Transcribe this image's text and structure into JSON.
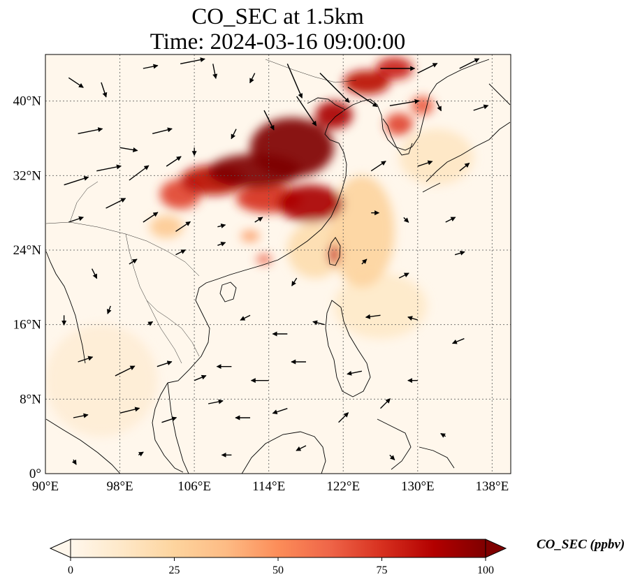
{
  "title": "CO_SEC at 1.5km",
  "subtitle": "Time: 2024-03-16 09:00:00",
  "map": {
    "lon_range": [
      90,
      140
    ],
    "lat_range": [
      0,
      45
    ],
    "lon_ticks": [
      {
        "value": 90,
        "label": "90°E"
      },
      {
        "value": 98,
        "label": "98°E"
      },
      {
        "value": 106,
        "label": "106°E"
      },
      {
        "value": 114,
        "label": "114°E"
      },
      {
        "value": 122,
        "label": "122°E"
      },
      {
        "value": 130,
        "label": "130°E"
      },
      {
        "value": 138,
        "label": "138°E"
      }
    ],
    "lat_ticks": [
      {
        "value": 0,
        "label": "0°"
      },
      {
        "value": 8,
        "label": "8°N"
      },
      {
        "value": 16,
        "label": "16°N"
      },
      {
        "value": 24,
        "label": "24°N"
      },
      {
        "value": 32,
        "label": "32°N"
      },
      {
        "value": 40,
        "label": "40°N"
      }
    ],
    "gridlines": true,
    "field_color_low": "#fff7ec",
    "field_color_high": "#7f0000"
  },
  "colorbar": {
    "label": "CO_SEC (ppbv)",
    "min": 0,
    "max": 100,
    "ticks": [
      {
        "value": 0,
        "label": "0"
      },
      {
        "value": 25,
        "label": "25"
      },
      {
        "value": 50,
        "label": "50"
      },
      {
        "value": 75,
        "label": "75"
      },
      {
        "value": 100,
        "label": "100"
      }
    ],
    "extend": "both",
    "colormap": "OrRd",
    "stops": [
      "#fff7ec",
      "#fee8c8",
      "#fdd49e",
      "#fdbb84",
      "#fc8d59",
      "#ef6548",
      "#d7301f",
      "#b30000",
      "#7f0000"
    ]
  },
  "plumes": [
    {
      "lon": 116.5,
      "lat": 35.0,
      "rx": 4.5,
      "ry": 3.2,
      "value": 100
    },
    {
      "lon": 112.5,
      "lat": 32.5,
      "rx": 5.0,
      "ry": 1.8,
      "value": 100
    },
    {
      "lon": 108.0,
      "lat": 31.5,
      "rx": 3.5,
      "ry": 1.6,
      "value": 85
    },
    {
      "lon": 104.5,
      "lat": 30.0,
      "rx": 2.2,
      "ry": 1.6,
      "value": 70
    },
    {
      "lon": 118.5,
      "lat": 29.0,
      "rx": 3.5,
      "ry": 2.0,
      "value": 90
    },
    {
      "lon": 114.0,
      "lat": 29.5,
      "rx": 3.5,
      "ry": 1.5,
      "value": 75
    },
    {
      "lon": 121.0,
      "lat": 38.5,
      "rx": 2.0,
      "ry": 1.5,
      "value": 90
    },
    {
      "lon": 124.5,
      "lat": 42.0,
      "rx": 2.5,
      "ry": 1.3,
      "value": 85
    },
    {
      "lon": 127.5,
      "lat": 43.5,
      "rx": 2.0,
      "ry": 1.2,
      "value": 80
    },
    {
      "lon": 128.0,
      "lat": 37.5,
      "rx": 1.5,
      "ry": 1.2,
      "value": 70
    },
    {
      "lon": 130.5,
      "lat": 39.5,
      "rx": 1.2,
      "ry": 1.0,
      "value": 65
    },
    {
      "lon": 121.0,
      "lat": 23.5,
      "rx": 0.6,
      "ry": 1.1,
      "value": 80
    },
    {
      "lon": 113.5,
      "lat": 23.0,
      "rx": 0.8,
      "ry": 0.5,
      "value": 65
    },
    {
      "lon": 112.0,
      "lat": 25.5,
      "rx": 1.0,
      "ry": 0.6,
      "value": 45
    },
    {
      "lon": 103.0,
      "lat": 26.5,
      "rx": 1.8,
      "ry": 1.2,
      "value": 30
    },
    {
      "lon": 124.0,
      "lat": 26.0,
      "rx": 3.5,
      "ry": 6.0,
      "value": 25
    },
    {
      "lon": 119.0,
      "lat": 24.0,
      "rx": 3.0,
      "ry": 3.0,
      "value": 20
    },
    {
      "lon": 126.0,
      "lat": 18.0,
      "rx": 5.0,
      "ry": 3.5,
      "value": 12
    },
    {
      "lon": 96.0,
      "lat": 10.0,
      "rx": 6.0,
      "ry": 6.0,
      "value": 8
    },
    {
      "lon": 132.0,
      "lat": 34.0,
      "rx": 4.0,
      "ry": 3.0,
      "value": 14
    }
  ],
  "wind_vectors": [
    {
      "lon": 92.5,
      "lat": 42.5,
      "u": 1.5,
      "v": -1.0
    },
    {
      "lon": 96.0,
      "lat": 42.0,
      "u": 0.5,
      "v": -1.5
    },
    {
      "lon": 100.5,
      "lat": 43.5,
      "u": 1.5,
      "v": 0.3
    },
    {
      "lon": 104.5,
      "lat": 44.0,
      "u": 2.5,
      "v": 0.5
    },
    {
      "lon": 108.0,
      "lat": 44.0,
      "u": 0.3,
      "v": -1.5
    },
    {
      "lon": 112.5,
      "lat": 43.0,
      "u": -0.5,
      "v": -1.0
    },
    {
      "lon": 116.0,
      "lat": 44.0,
      "u": 1.5,
      "v": -3.5
    },
    {
      "lon": 119.5,
      "lat": 43.0,
      "u": 3.0,
      "v": -3.0
    },
    {
      "lon": 122.5,
      "lat": 41.5,
      "u": 3.0,
      "v": -2.0
    },
    {
      "lon": 126.0,
      "lat": 43.5,
      "u": 3.5,
      "v": 0.0
    },
    {
      "lon": 130.0,
      "lat": 43.0,
      "u": 2.0,
      "v": 1.0
    },
    {
      "lon": 134.5,
      "lat": 43.5,
      "u": 2.0,
      "v": 1.0
    },
    {
      "lon": 93.5,
      "lat": 36.5,
      "u": 2.5,
      "v": 0.5
    },
    {
      "lon": 98.0,
      "lat": 35.0,
      "u": 1.8,
      "v": -0.3
    },
    {
      "lon": 101.5,
      "lat": 36.5,
      "u": 2.0,
      "v": 0.5
    },
    {
      "lon": 106.0,
      "lat": 35.0,
      "u": 0.0,
      "v": -0.8
    },
    {
      "lon": 110.5,
      "lat": 37.0,
      "u": -0.5,
      "v": -1.0
    },
    {
      "lon": 113.5,
      "lat": 39.0,
      "u": 1.0,
      "v": -2.0
    },
    {
      "lon": 117.0,
      "lat": 40.5,
      "u": 2.0,
      "v": -3.0
    },
    {
      "lon": 127.0,
      "lat": 39.5,
      "u": 3.0,
      "v": 0.5
    },
    {
      "lon": 132.0,
      "lat": 40.0,
      "u": 0.5,
      "v": -1.0
    },
    {
      "lon": 136.0,
      "lat": 39.0,
      "u": 1.5,
      "v": 0.5
    },
    {
      "lon": 92.0,
      "lat": 31.0,
      "u": 2.5,
      "v": 0.8
    },
    {
      "lon": 95.5,
      "lat": 32.5,
      "u": 2.5,
      "v": 0.5
    },
    {
      "lon": 99.0,
      "lat": 31.5,
      "u": 2.0,
      "v": 1.5
    },
    {
      "lon": 103.0,
      "lat": 33.0,
      "u": 1.5,
      "v": 1.0
    },
    {
      "lon": 125.0,
      "lat": 32.5,
      "u": 1.5,
      "v": 1.0
    },
    {
      "lon": 130.0,
      "lat": 33.0,
      "u": 1.5,
      "v": 0.5
    },
    {
      "lon": 134.5,
      "lat": 32.5,
      "u": 1.0,
      "v": 0.8
    },
    {
      "lon": 92.5,
      "lat": 27.0,
      "u": 1.5,
      "v": 0.5
    },
    {
      "lon": 96.5,
      "lat": 28.5,
      "u": 2.0,
      "v": 1.0
    },
    {
      "lon": 100.5,
      "lat": 27.0,
      "u": 1.5,
      "v": 1.0
    },
    {
      "lon": 104.0,
      "lat": 26.0,
      "u": 1.5,
      "v": 1.0
    },
    {
      "lon": 108.5,
      "lat": 26.5,
      "u": 0.8,
      "v": 0.2
    },
    {
      "lon": 112.5,
      "lat": 27.0,
      "u": 0.8,
      "v": 0.5
    },
    {
      "lon": 125.0,
      "lat": 28.0,
      "u": 0.8,
      "v": 0.0
    },
    {
      "lon": 128.5,
      "lat": 27.5,
      "u": 0.5,
      "v": -0.5
    },
    {
      "lon": 133.0,
      "lat": 27.0,
      "u": 1.0,
      "v": 0.5
    },
    {
      "lon": 95.0,
      "lat": 22.0,
      "u": 0.5,
      "v": -1.0
    },
    {
      "lon": 99.0,
      "lat": 22.5,
      "u": 0.8,
      "v": 0.5
    },
    {
      "lon": 104.0,
      "lat": 23.5,
      "u": 1.0,
      "v": 0.5
    },
    {
      "lon": 108.5,
      "lat": 24.5,
      "u": 0.8,
      "v": 0.3
    },
    {
      "lon": 117.0,
      "lat": 21.0,
      "u": -0.5,
      "v": -0.8
    },
    {
      "lon": 124.0,
      "lat": 22.5,
      "u": 0.5,
      "v": 0.5
    },
    {
      "lon": 128.0,
      "lat": 21.0,
      "u": 1.0,
      "v": 0.5
    },
    {
      "lon": 134.0,
      "lat": 23.5,
      "u": 1.0,
      "v": 0.3
    },
    {
      "lon": 92.0,
      "lat": 17.0,
      "u": 0.0,
      "v": -1.0
    },
    {
      "lon": 97.0,
      "lat": 18.0,
      "u": -0.3,
      "v": -0.8
    },
    {
      "lon": 101.0,
      "lat": 16.0,
      "u": 0.5,
      "v": 0.3
    },
    {
      "lon": 112.0,
      "lat": 17.0,
      "u": -1.0,
      "v": -0.5
    },
    {
      "lon": 116.0,
      "lat": 15.0,
      "u": -1.5,
      "v": 0.0
    },
    {
      "lon": 120.0,
      "lat": 16.0,
      "u": -1.2,
      "v": 0.3
    },
    {
      "lon": 126.0,
      "lat": 17.0,
      "u": -1.5,
      "v": -0.2
    },
    {
      "lon": 130.0,
      "lat": 16.5,
      "u": -1.0,
      "v": 0.3
    },
    {
      "lon": 135.0,
      "lat": 14.5,
      "u": -1.2,
      "v": -0.5
    },
    {
      "lon": 93.5,
      "lat": 12.0,
      "u": 1.5,
      "v": 0.5
    },
    {
      "lon": 97.5,
      "lat": 10.5,
      "u": 2.0,
      "v": 1.0
    },
    {
      "lon": 102.0,
      "lat": 11.5,
      "u": 1.5,
      "v": 0.5
    },
    {
      "lon": 106.0,
      "lat": 10.0,
      "u": 1.2,
      "v": 0.5
    },
    {
      "lon": 110.0,
      "lat": 11.5,
      "u": -1.5,
      "v": 0.0
    },
    {
      "lon": 114.0,
      "lat": 10.0,
      "u": -1.8,
      "v": 0.0
    },
    {
      "lon": 118.0,
      "lat": 12.0,
      "u": -1.5,
      "v": 0.0
    },
    {
      "lon": 124.0,
      "lat": 11.0,
      "u": -1.5,
      "v": -0.3
    },
    {
      "lon": 130.0,
      "lat": 10.0,
      "u": -1.0,
      "v": 0.0
    },
    {
      "lon": 93.0,
      "lat": 6.0,
      "u": 1.5,
      "v": 0.3
    },
    {
      "lon": 98.0,
      "lat": 6.5,
      "u": 2.0,
      "v": 0.5
    },
    {
      "lon": 102.5,
      "lat": 5.5,
      "u": 1.5,
      "v": 0.5
    },
    {
      "lon": 107.5,
      "lat": 7.5,
      "u": 1.5,
      "v": 0.3
    },
    {
      "lon": 112.0,
      "lat": 6.0,
      "u": -1.5,
      "v": 0.0
    },
    {
      "lon": 116.0,
      "lat": 7.0,
      "u": -1.5,
      "v": -0.5
    },
    {
      "lon": 121.5,
      "lat": 5.5,
      "u": 1.0,
      "v": 1.0
    },
    {
      "lon": 126.0,
      "lat": 7.0,
      "u": 1.0,
      "v": 1.0
    },
    {
      "lon": 93.0,
      "lat": 1.5,
      "u": 0.3,
      "v": -0.5
    },
    {
      "lon": 100.0,
      "lat": 2.0,
      "u": 0.5,
      "v": 0.3
    },
    {
      "lon": 110.0,
      "lat": 2.0,
      "u": -1.0,
      "v": 0.0
    },
    {
      "lon": 118.0,
      "lat": 3.0,
      "u": -1.0,
      "v": -0.5
    },
    {
      "lon": 127.0,
      "lat": 2.0,
      "u": 0.5,
      "v": -0.5
    },
    {
      "lon": 133.0,
      "lat": 4.0,
      "u": -0.5,
      "v": 0.3
    }
  ]
}
